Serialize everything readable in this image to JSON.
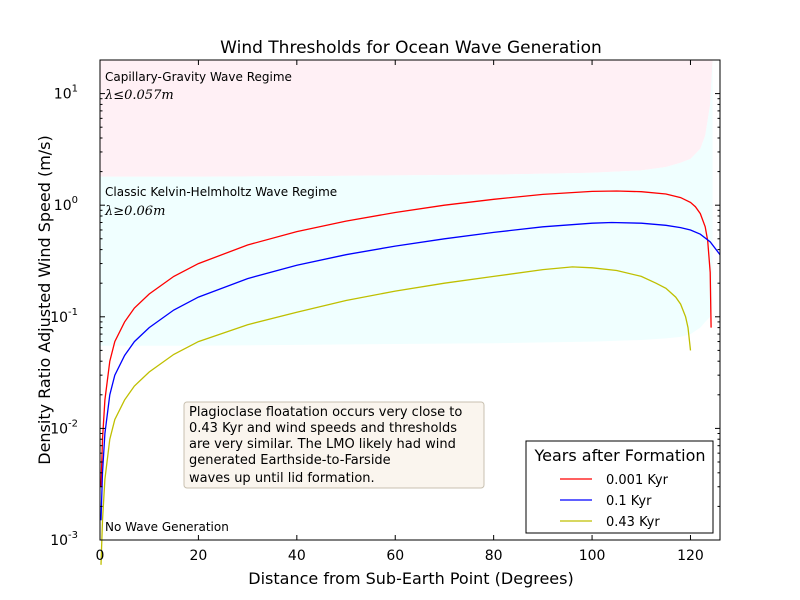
{
  "chart_data": {
    "type": "line",
    "title": "Wind Thresholds for Ocean Wave Generation",
    "xlabel": "Distance from Sub-Earth Point (Degrees)",
    "ylabel": "Density Ratio Adjusted Wind Speed (m/s)",
    "xlim": [
      0,
      126
    ],
    "ylim": [
      0.001,
      20
    ],
    "yscale": "log",
    "x_ticks": [
      {
        "value": 0,
        "label": "0"
      },
      {
        "value": 20,
        "label": "20"
      },
      {
        "value": 40,
        "label": "40"
      },
      {
        "value": 60,
        "label": "60"
      },
      {
        "value": 80,
        "label": "80"
      },
      {
        "value": 100,
        "label": "100"
      },
      {
        "value": 120,
        "label": "120"
      }
    ],
    "y_ticks": [
      {
        "value": 0.001,
        "base": "10",
        "exp": "-3"
      },
      {
        "value": 0.01,
        "base": "10",
        "exp": "-2"
      },
      {
        "value": 0.1,
        "base": "10",
        "exp": "-1"
      },
      {
        "value": 1,
        "base": "10",
        "exp": "0"
      },
      {
        "value": 10,
        "base": "10",
        "exp": "1"
      }
    ],
    "regions": [
      {
        "name": "capillary-gravity",
        "label": "Capillary-Gravity Wave Regime",
        "math": "λ≤0.057m",
        "color": "#fff0f5",
        "x": [
          0,
          20,
          40,
          60,
          80,
          100,
          110,
          115,
          118,
          120,
          122,
          123,
          124,
          124.5
        ],
        "lower": [
          1.8,
          1.8,
          1.82,
          1.85,
          1.88,
          1.95,
          2.05,
          2.2,
          2.4,
          2.6,
          3.2,
          4.2,
          8,
          20
        ],
        "upper": [
          20,
          20,
          20,
          20,
          20,
          20,
          20,
          20,
          20,
          20,
          20,
          20,
          20,
          20
        ]
      },
      {
        "name": "kelvin-helmholtz",
        "label": "Classic Kelvin-Helmholtz Wave Regime",
        "math": "λ≥0.06m",
        "color": "#f0ffff",
        "x": [
          0,
          20,
          40,
          60,
          80,
          100,
          110,
          115,
          118,
          120,
          122,
          123,
          124,
          124.5
        ],
        "lower": [
          0.055,
          0.055,
          0.056,
          0.057,
          0.058,
          0.06,
          0.062,
          0.064,
          0.066,
          0.07,
          0.08,
          0.09,
          0.1,
          0.12
        ],
        "upper": [
          1.8,
          1.8,
          1.82,
          1.85,
          1.88,
          1.95,
          2.05,
          2.2,
          2.4,
          2.6,
          3.2,
          4.2,
          8,
          20
        ]
      }
    ],
    "series": [
      {
        "name": "0.001 Kyr",
        "color": "#ff0000",
        "x": [
          0.2,
          0.5,
          1,
          2,
          3,
          5,
          7,
          10,
          15,
          20,
          30,
          40,
          50,
          60,
          70,
          80,
          90,
          100,
          105,
          110,
          115,
          118,
          120,
          121,
          122,
          123,
          123.5,
          124,
          124.2
        ],
        "y": [
          0.003,
          0.008,
          0.018,
          0.04,
          0.06,
          0.09,
          0.12,
          0.16,
          0.23,
          0.3,
          0.44,
          0.58,
          0.72,
          0.86,
          1.0,
          1.13,
          1.25,
          1.33,
          1.34,
          1.32,
          1.26,
          1.17,
          1.06,
          0.97,
          0.84,
          0.64,
          0.48,
          0.25,
          0.08
        ]
      },
      {
        "name": "0.1 Kyr",
        "color": "#0000ff",
        "x": [
          0.2,
          0.5,
          1,
          2,
          3,
          5,
          7,
          10,
          15,
          20,
          30,
          40,
          50,
          60,
          70,
          80,
          90,
          100,
          104,
          110,
          115,
          118,
          120,
          122,
          124,
          126
        ],
        "y": [
          0.0015,
          0.004,
          0.009,
          0.02,
          0.03,
          0.045,
          0.06,
          0.08,
          0.115,
          0.15,
          0.22,
          0.29,
          0.36,
          0.43,
          0.5,
          0.57,
          0.64,
          0.69,
          0.7,
          0.69,
          0.66,
          0.63,
          0.6,
          0.55,
          0.47,
          0.36
        ]
      },
      {
        "name": "0.43 Kyr",
        "color": "#bfbf00",
        "x": [
          0.2,
          0.5,
          1,
          2,
          3,
          5,
          7,
          10,
          15,
          20,
          30,
          40,
          50,
          60,
          70,
          80,
          90,
          96,
          100,
          105,
          110,
          113,
          115,
          117,
          118,
          119,
          119.5,
          120
        ],
        "y": [
          0.0006,
          0.0015,
          0.0035,
          0.008,
          0.012,
          0.018,
          0.024,
          0.032,
          0.046,
          0.06,
          0.085,
          0.11,
          0.14,
          0.17,
          0.2,
          0.23,
          0.265,
          0.28,
          0.275,
          0.26,
          0.23,
          0.2,
          0.18,
          0.15,
          0.13,
          0.1,
          0.08,
          0.05
        ]
      }
    ],
    "legend": {
      "title": "Years after Formation",
      "position": "lower-right"
    },
    "annotations": {
      "note": [
        "Plagioclase floatation occurs very close to",
        "0.43 Kyr and wind speeds and thresholds",
        "are very similar.  The LMO likely had wind",
        "generated Earthside-to-Farside",
        "waves up until lid formation."
      ],
      "no_wave": "No Wave Generation"
    }
  }
}
